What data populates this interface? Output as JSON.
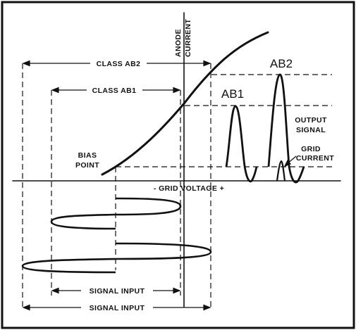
{
  "diagram": {
    "colors": {
      "ink": "#111111",
      "background": "#ffffff"
    },
    "labels": {
      "class_ab2": "CLASS AB2",
      "class_ab1": "CLASS AB1",
      "anode": "ANODE",
      "current": "CURRENT",
      "ab1": "AB1",
      "ab2": "AB2",
      "output": "OUTPUT",
      "signal": "SIGNAL",
      "grid": "GRID",
      "grid_current": "CURRENT",
      "bias": "BIAS",
      "point": "POINT",
      "grid_voltage": "- GRID VOLTAGE +",
      "signal_input_ab1": "SIGNAL INPUT",
      "signal_input_ab2": "SIGNAL INPUT"
    }
  }
}
